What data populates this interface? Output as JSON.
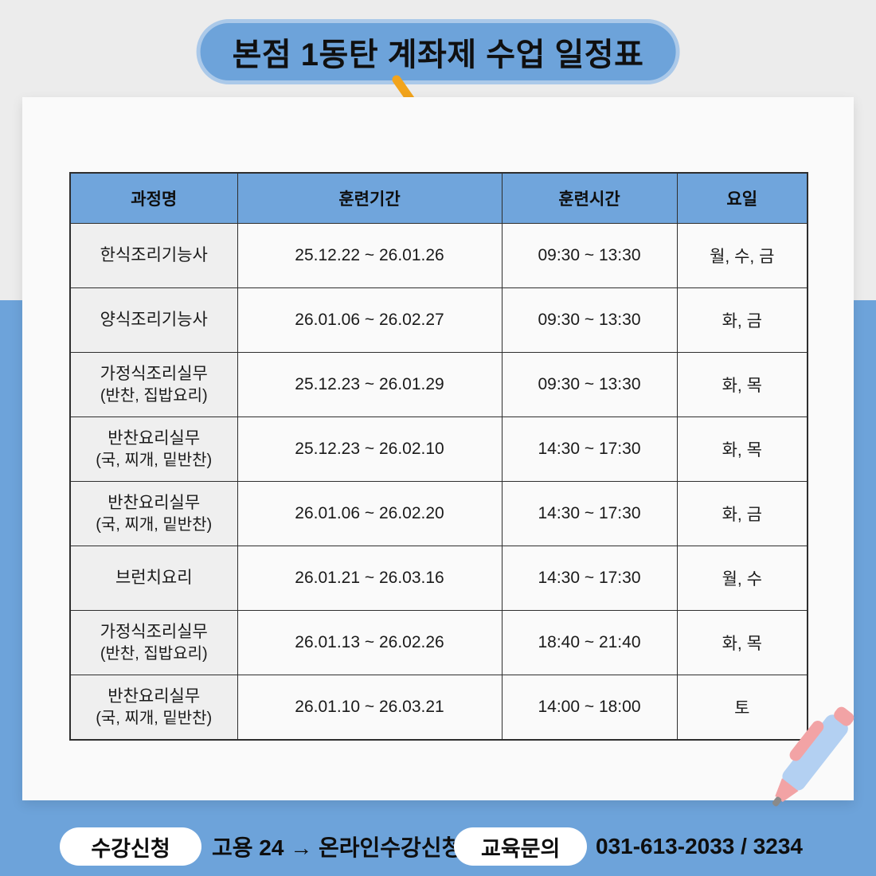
{
  "title": "본점 1동탄 계좌제 수업 일정표",
  "table": {
    "headers": [
      "과정명",
      "훈련기간",
      "훈련시간",
      "요일"
    ],
    "rows": [
      {
        "course": "한식조리기능사",
        "course_sub": "",
        "period": "25.12.22 ~ 26.01.26",
        "time": "09:30 ~ 13:30",
        "days": "월, 수, 금"
      },
      {
        "course": "양식조리기능사",
        "course_sub": "",
        "period": "26.01.06 ~ 26.02.27",
        "time": "09:30 ~ 13:30",
        "days": "화, 금"
      },
      {
        "course": "가정식조리실무",
        "course_sub": "(반찬, 집밥요리)",
        "period": "25.12.23 ~ 26.01.29",
        "time": "09:30 ~ 13:30",
        "days": "화, 목"
      },
      {
        "course": "반찬요리실무",
        "course_sub": "(국, 찌개, 밑반찬)",
        "period": "25.12.23 ~ 26.02.10",
        "time": "14:30 ~ 17:30",
        "days": "화, 목"
      },
      {
        "course": "반찬요리실무",
        "course_sub": "(국, 찌개, 밑반찬)",
        "period": "26.01.06 ~ 26.02.20",
        "time": "14:30 ~ 17:30",
        "days": "화, 금"
      },
      {
        "course": "브런치요리",
        "course_sub": "",
        "period": "26.01.21 ~ 26.03.16",
        "time": "14:30 ~ 17:30",
        "days": "월, 수"
      },
      {
        "course": "가정식조리실무",
        "course_sub": "(반찬, 집밥요리)",
        "period": "26.01.13 ~ 26.02.26",
        "time": "18:40 ~ 21:40",
        "days": "화, 목"
      },
      {
        "course": "반찬요리실무",
        "course_sub": "(국, 찌개, 밑반찬)",
        "period": "26.01.10 ~ 26.03.21",
        "time": "14:00 ~ 18:00",
        "days": "토"
      }
    ]
  },
  "footer": {
    "register_label": "수강신청",
    "register_value": "고용 24 → 온라인수강신청",
    "inquiry_label": "교육문의",
    "inquiry_value": "031-613-2033 / 3234"
  },
  "icons": {
    "pin": "pushpin-icon",
    "pen": "pen-icon"
  },
  "colors": {
    "accent_blue": "#6DA3DA",
    "header_blue": "#70A5DC",
    "bg_gray": "#ECECEC",
    "card_white": "#FAFAFA",
    "course_cell_gray": "#EFEFEF",
    "pill_border_blue": "#ABC9E9",
    "pin_yellow": "#F2A41C",
    "pin_head_gray": "#5C5C5C",
    "pen_blue": "#B3D0F2",
    "pen_pink": "#F2A3A5",
    "text_black": "#141414"
  }
}
